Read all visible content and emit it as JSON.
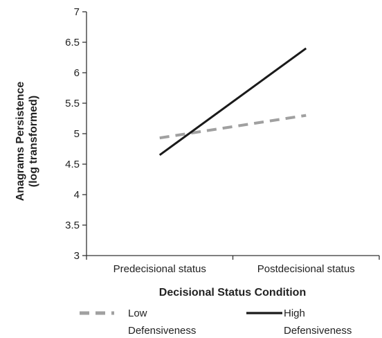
{
  "chart_data": {
    "type": "line",
    "title": "",
    "xlabel": "Decisional Status Condition",
    "ylabel": [
      "Anagrams Persistence",
      "(log transformed)"
    ],
    "categories": [
      "Predecisional status",
      "Postdecisional status"
    ],
    "ylim": [
      3,
      7
    ],
    "yticks": [
      "3",
      "3.5",
      "4",
      "4.5",
      "5",
      "5.5",
      "6",
      "6.5",
      "7"
    ],
    "grid": false,
    "legend_position": "bottom",
    "series": [
      {
        "name": [
          "Low",
          "Defensiveness"
        ],
        "values": [
          4.93,
          5.3
        ],
        "color": "#a0a0a0",
        "style": "dashed"
      },
      {
        "name": [
          "High",
          "Defensiveness"
        ],
        "values": [
          4.65,
          6.4
        ],
        "color": "#1a1a1a",
        "style": "solid"
      }
    ]
  }
}
